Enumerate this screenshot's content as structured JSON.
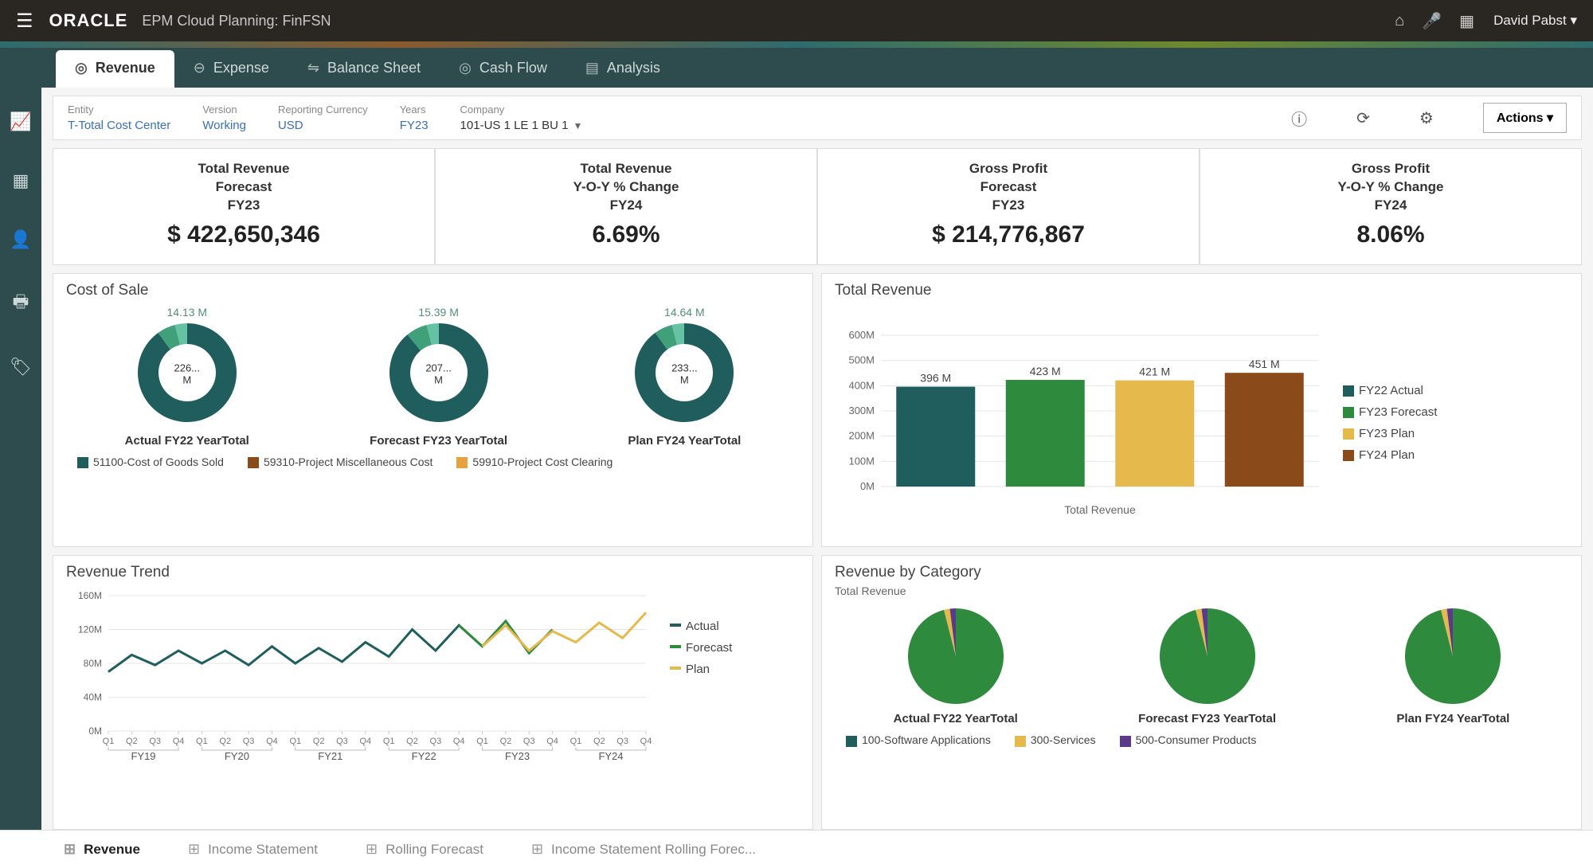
{
  "topbar": {
    "logo": "ORACLE",
    "subtitle": "EPM Cloud Planning: FinFSN",
    "user": "David Pabst ▾"
  },
  "navtabs": [
    {
      "label": "Revenue",
      "active": true
    },
    {
      "label": "Expense",
      "active": false
    },
    {
      "label": "Balance Sheet",
      "active": false
    },
    {
      "label": "Cash Flow",
      "active": false
    },
    {
      "label": "Analysis",
      "active": false
    }
  ],
  "filters": [
    {
      "label": "Entity",
      "value": "T-Total Cost Center"
    },
    {
      "label": "Version",
      "value": "Working"
    },
    {
      "label": "Reporting Currency",
      "value": "USD"
    },
    {
      "label": "Years",
      "value": "FY23"
    },
    {
      "label": "Company",
      "value": "101-US 1 LE 1 BU 1",
      "dropdown": true,
      "dark": true
    }
  ],
  "actions_label": "Actions ▾",
  "kpis": [
    {
      "line1": "Total Revenue",
      "line2": "Forecast",
      "line3": "FY23",
      "value": "$ 422,650,346"
    },
    {
      "line1": "Total Revenue",
      "line2": "Y-O-Y % Change",
      "line3": "FY24",
      "value": "6.69%"
    },
    {
      "line1": "Gross Profit",
      "line2": "Forecast",
      "line3": "FY23",
      "value": "$ 214,776,867"
    },
    {
      "line1": "Gross Profit",
      "line2": "Y-O-Y % Change",
      "line3": "FY24",
      "value": "8.06%"
    }
  ],
  "cost_of_sale": {
    "title": "Cost of Sale",
    "donuts": [
      {
        "top": "14.13 M",
        "center": "226... M",
        "caption": "Actual FY22 YearTotal",
        "slices": [
          {
            "color": "#205e5e",
            "pct": 90
          },
          {
            "color": "#3fa07a",
            "pct": 6
          },
          {
            "color": "#66c2a5",
            "pct": 4
          }
        ]
      },
      {
        "top": "15.39 M",
        "center": "207... M",
        "caption": "Forecast FY23 YearTotal",
        "slices": [
          {
            "color": "#205e5e",
            "pct": 89
          },
          {
            "color": "#3fa07a",
            "pct": 7
          },
          {
            "color": "#66c2a5",
            "pct": 4
          }
        ]
      },
      {
        "top": "14.64 M",
        "center": "233... M",
        "caption": "Plan FY24 YearTotal",
        "slices": [
          {
            "color": "#205e5e",
            "pct": 90
          },
          {
            "color": "#3fa07a",
            "pct": 6
          },
          {
            "color": "#66c2a5",
            "pct": 4
          }
        ]
      }
    ],
    "legend": [
      {
        "color": "#205e5e",
        "label": "51100-Cost of Goods Sold"
      },
      {
        "color": "#8a4a1a",
        "label": "59310-Project Miscellaneous Cost"
      },
      {
        "color": "#e6a23c",
        "label": "59910-Project Cost Clearing"
      }
    ]
  },
  "total_revenue": {
    "title": "Total Revenue",
    "ylim": [
      0,
      600
    ],
    "ytick_step": 100,
    "yunit": "M",
    "bars": [
      {
        "label": "396 M",
        "value": 396,
        "color": "#205e5e"
      },
      {
        "label": "423 M",
        "value": 423,
        "color": "#2e8b3e"
      },
      {
        "label": "421 M",
        "value": 421,
        "color": "#e6b94d"
      },
      {
        "label": "451 M",
        "value": 451,
        "color": "#8a4a1a"
      }
    ],
    "xaxis_label": "Total Revenue",
    "legend": [
      {
        "color": "#205e5e",
        "label": "FY22 Actual"
      },
      {
        "color": "#2e8b3e",
        "label": "FY23 Forecast"
      },
      {
        "color": "#e6b94d",
        "label": "FY23 Plan"
      },
      {
        "color": "#8a4a1a",
        "label": "FY24 Plan"
      }
    ]
  },
  "revenue_trend": {
    "title": "Revenue Trend",
    "ylim": [
      0,
      160
    ],
    "yticks": [
      0,
      40,
      80,
      120,
      160
    ],
    "yunit": "M",
    "quarters": [
      "Q1",
      "Q2",
      "Q3",
      "Q4",
      "Q1",
      "Q2",
      "Q3",
      "Q4",
      "Q1",
      "Q2",
      "Q3",
      "Q4",
      "Q1",
      "Q2",
      "Q3",
      "Q4",
      "Q1",
      "Q2",
      "Q3",
      "Q4",
      "Q1",
      "Q2",
      "Q3",
      "Q4"
    ],
    "year_groups": [
      "FY19",
      "FY20",
      "FY21",
      "FY22",
      "FY23",
      "FY24"
    ],
    "series": [
      {
        "name": "Actual",
        "color": "#205e5e",
        "values": [
          70,
          90,
          78,
          95,
          80,
          95,
          78,
          100,
          80,
          98,
          82,
          105,
          88,
          120,
          95,
          125,
          100,
          null,
          null,
          null,
          null,
          null,
          null,
          null
        ]
      },
      {
        "name": "Forecast",
        "color": "#2e8b3e",
        "values": [
          null,
          null,
          null,
          null,
          null,
          null,
          null,
          null,
          null,
          null,
          null,
          null,
          null,
          null,
          null,
          125,
          100,
          130,
          92,
          120,
          null,
          null,
          null,
          null
        ]
      },
      {
        "name": "Plan",
        "color": "#e6b94d",
        "values": [
          null,
          null,
          null,
          null,
          null,
          null,
          null,
          null,
          null,
          null,
          null,
          null,
          null,
          null,
          null,
          null,
          100,
          125,
          95,
          118,
          105,
          128,
          110,
          140
        ]
      }
    ],
    "legend": [
      {
        "color": "#205e5e",
        "label": "Actual"
      },
      {
        "color": "#2e8b3e",
        "label": "Forecast"
      },
      {
        "color": "#e6b94d",
        "label": "Plan"
      }
    ]
  },
  "revenue_by_category": {
    "title": "Revenue by Category",
    "subtitle": "Total Revenue",
    "pies": [
      {
        "caption": "Actual FY22 YearTotal",
        "slices": [
          {
            "color": "#2e8b3e",
            "pct": 96
          },
          {
            "color": "#e6b94d",
            "pct": 2
          },
          {
            "color": "#5b3a8a",
            "pct": 2
          }
        ]
      },
      {
        "caption": "Forecast FY23 YearTotal",
        "slices": [
          {
            "color": "#2e8b3e",
            "pct": 96
          },
          {
            "color": "#e6b94d",
            "pct": 2
          },
          {
            "color": "#5b3a8a",
            "pct": 2
          }
        ]
      },
      {
        "caption": "Plan FY24 YearTotal",
        "slices": [
          {
            "color": "#2e8b3e",
            "pct": 96
          },
          {
            "color": "#e6b94d",
            "pct": 2
          },
          {
            "color": "#5b3a8a",
            "pct": 2
          }
        ]
      }
    ],
    "legend": [
      {
        "color": "#205e5e",
        "label": "100-Software Applications"
      },
      {
        "color": "#e6b94d",
        "label": "300-Services"
      },
      {
        "color": "#5b3a8a",
        "label": "500-Consumer Products"
      }
    ]
  },
  "footer_tabs": [
    {
      "label": "Revenue",
      "active": true
    },
    {
      "label": "Income Statement",
      "active": false
    },
    {
      "label": "Rolling Forecast",
      "active": false
    },
    {
      "label": "Income Statement Rolling Forec...",
      "active": false
    }
  ]
}
